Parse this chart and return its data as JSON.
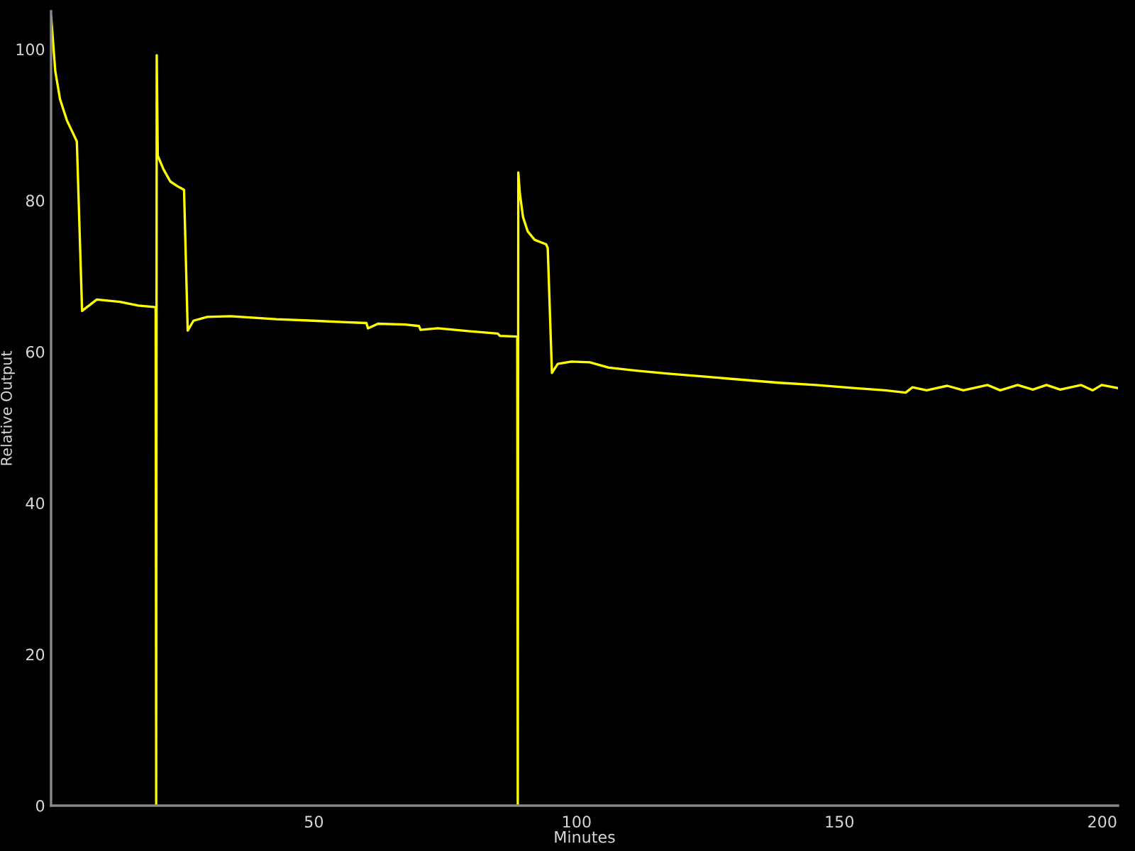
{
  "chart_data": {
    "type": "line",
    "xlabel": "Minutes",
    "ylabel": "Relative Output",
    "x": [
      0,
      0.8,
      1.7,
      3.0,
      4.3,
      4.9,
      5.9,
      8.7,
      13.1,
      16.6,
      19.9,
      20.0,
      20.1,
      20.3,
      21.4,
      22.7,
      24.0,
      25.3,
      26.0,
      27.1,
      29.7,
      34.1,
      42.9,
      49.9,
      56.1,
      60.0,
      60.3,
      62.2,
      67.4,
      70.0,
      70.3,
      73.6,
      79.7,
      85.0,
      85.4,
      88.7,
      88.8,
      88.9,
      89.2,
      89.8,
      90.7,
      92.0,
      94.2,
      94.5,
      95.3,
      96.4,
      99.0,
      102.5,
      106.1,
      111.3,
      117.4,
      124.5,
      131.5,
      138.5,
      145.5,
      152.6,
      158.7,
      162.6,
      163.9,
      166.6,
      170.5,
      173.6,
      178.2,
      180.6,
      183.9,
      186.8,
      189.4,
      192.0,
      196.0,
      198.2,
      199.9,
      202.9
    ],
    "series": [
      {
        "color": "#ffff00",
        "values": [
          104.4,
          97.1,
          93.4,
          90.6,
          88.7,
          87.8,
          65.4,
          66.9,
          66.6,
          66.1,
          65.9,
          0,
          99.2,
          85.9,
          84.1,
          82.5,
          81.9,
          81.4,
          62.8,
          64.1,
          64.6,
          64.7,
          64.3,
          64.1,
          63.9,
          63.8,
          63.1,
          63.7,
          63.6,
          63.4,
          62.9,
          63.1,
          62.7,
          62.4,
          62.1,
          62.0,
          0,
          83.7,
          80.9,
          77.8,
          75.9,
          74.8,
          74.2,
          73.7,
          57.2,
          58.4,
          58.7,
          58.6,
          57.9,
          57.5,
          57.1,
          56.7,
          56.3,
          55.9,
          55.6,
          55.2,
          54.9,
          54.6,
          55.3,
          54.9,
          55.5,
          54.9,
          55.6,
          54.9,
          55.6,
          55.0,
          55.6,
          55.0,
          55.6,
          54.9,
          55.6,
          55.2
        ]
      }
    ],
    "xlim": [
      0,
      203
    ],
    "ylim": [
      0,
      105
    ],
    "xticks": [
      50,
      100,
      150,
      200
    ],
    "yticks": [
      0,
      20,
      40,
      60,
      80,
      100
    ],
    "grid": false,
    "line_style": "solid"
  }
}
